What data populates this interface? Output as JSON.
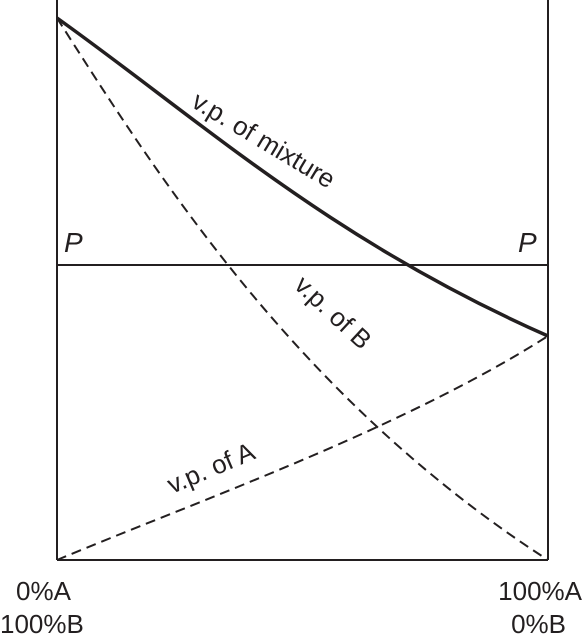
{
  "diagram": {
    "left_axis_top_label": "0%A",
    "left_axis_bottom_label": "100%B",
    "right_axis_top_label": "100%A",
    "right_axis_bottom_label": "0%B",
    "pressure_label_left": "P",
    "pressure_label_right": "P",
    "curves": {
      "mixture": "v.p. of mixture",
      "b": "v.p. of B",
      "a": "v.p. of A"
    }
  }
}
